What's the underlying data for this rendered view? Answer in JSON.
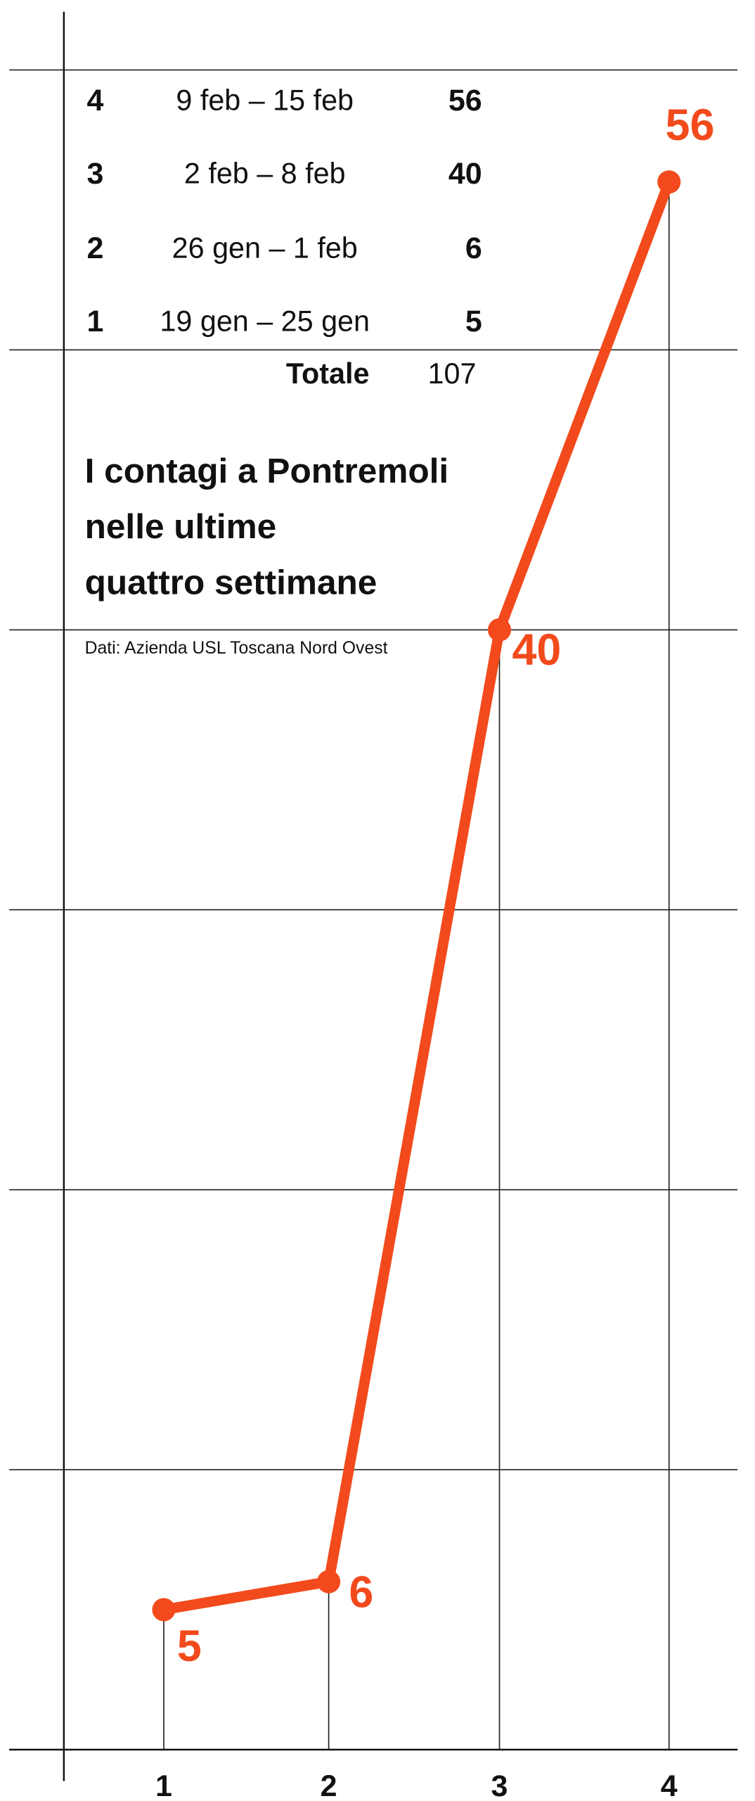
{
  "chart_data": {
    "type": "line",
    "title": [
      "I contagi a Pontremoli",
      "nelle ultime",
      "quattro settimane"
    ],
    "source": "Dati: Azienda USL Toscana Nord Ovest",
    "categories": [
      "1",
      "2",
      "3",
      "4"
    ],
    "values": [
      5,
      6,
      40,
      56
    ],
    "color": "#f24a1c",
    "ylim": [
      0,
      60
    ],
    "yticks": [
      0,
      10,
      20,
      30,
      40,
      50,
      60
    ],
    "grid": true
  },
  "table": {
    "rows": [
      [
        "4",
        "9 feb – 15 feb",
        "56"
      ],
      [
        "3",
        "2 feb – 8 feb",
        "40"
      ],
      [
        "2",
        "26 gen – 1 feb",
        "6"
      ],
      [
        "1",
        "19 gen – 25 gen",
        "5"
      ]
    ],
    "total_label": "Totale",
    "total": "107"
  }
}
